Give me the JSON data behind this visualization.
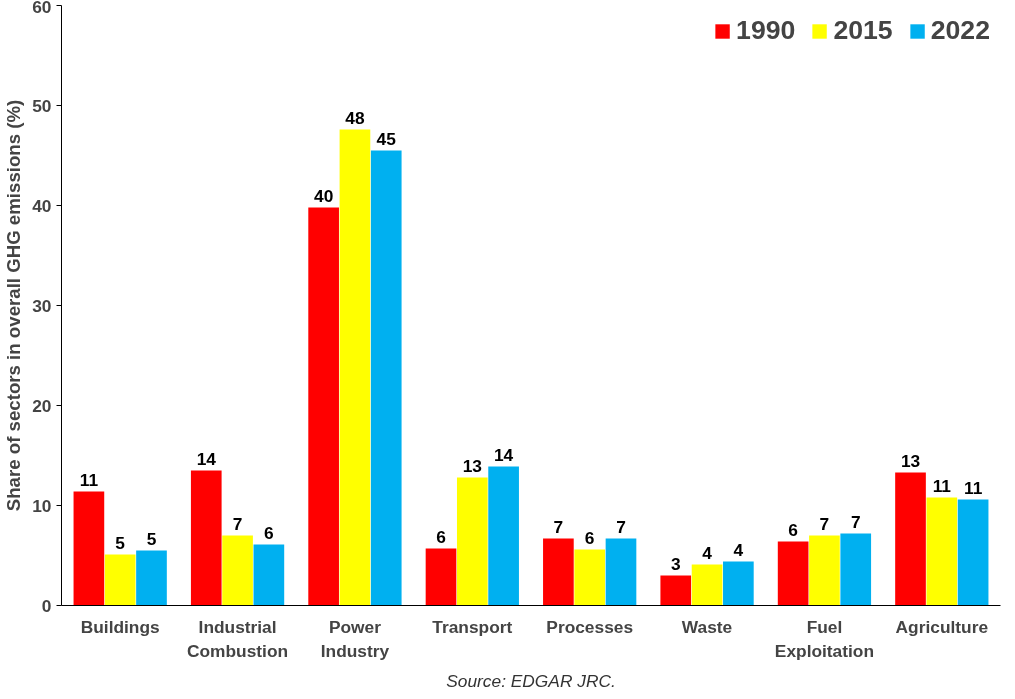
{
  "chart_data": {
    "type": "bar",
    "ylabel": "Share of sectors in overall GHG emissions (%)",
    "categories": [
      "Buildings",
      "Industrial\nCombustion",
      "Power\nIndustry",
      "Transport",
      "Processes",
      "Waste",
      "Fuel\nExploitation",
      "Agriculture"
    ],
    "series": [
      {
        "name": "1990",
        "color": "#ff0000",
        "values": [
          11.4,
          13.5,
          39.8,
          5.7,
          6.7,
          3.0,
          6.4,
          13.3
        ],
        "value_labels": [
          "11",
          "14",
          "40",
          "6",
          "7",
          "3",
          "6",
          "13"
        ]
      },
      {
        "name": "2015",
        "color": "#ffff00",
        "values": [
          5.1,
          7.0,
          47.6,
          12.8,
          5.6,
          4.1,
          7.0,
          10.8
        ],
        "value_labels": [
          "5",
          "7",
          "48",
          "13",
          "6",
          "4",
          "7",
          "11"
        ]
      },
      {
        "name": "2022",
        "color": "#00b0f0",
        "values": [
          5.5,
          6.1,
          45.5,
          13.9,
          6.7,
          4.4,
          7.2,
          10.6
        ],
        "value_labels": [
          "5",
          "6",
          "45",
          "14",
          "7",
          "4",
          "7",
          "11"
        ]
      }
    ],
    "ylim": [
      0,
      60
    ],
    "yticks": [
      0,
      10,
      20,
      30,
      40,
      50,
      60
    ],
    "grid": false,
    "legend": "top right",
    "annotations": [
      "Source: EDGAR JRC."
    ]
  }
}
